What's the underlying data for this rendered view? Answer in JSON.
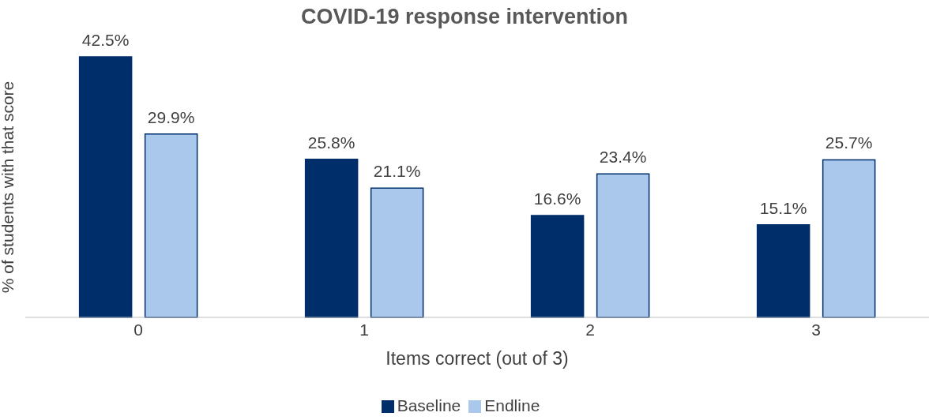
{
  "chart_data": {
    "type": "bar",
    "title": "COVID-19 response intervention",
    "xlabel": "Items correct (out of 3)",
    "ylabel": "% of students with that score",
    "categories": [
      "0",
      "1",
      "2",
      "3"
    ],
    "legend": "bottom",
    "grid": false,
    "series": [
      {
        "name": "Baseline",
        "color": "#002e6b",
        "values": [
          42.5,
          25.8,
          16.6,
          15.1
        ],
        "value_labels": [
          "42.5%",
          "25.8%",
          "16.6%",
          "15.1%"
        ]
      },
      {
        "name": "Endline",
        "color": "#a9c8ec",
        "values": [
          29.9,
          21.1,
          23.4,
          25.7
        ],
        "value_labels": [
          "29.9%",
          "21.1%",
          "23.4%",
          "25.7%"
        ]
      }
    ]
  }
}
